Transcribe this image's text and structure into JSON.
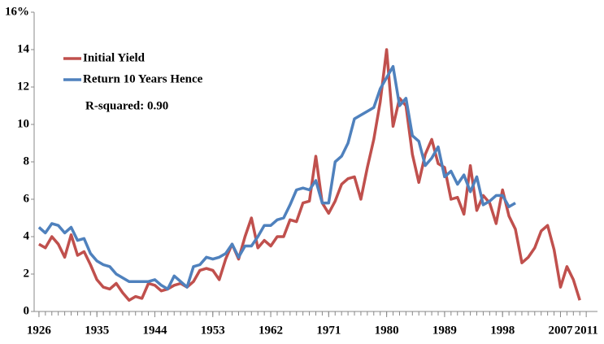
{
  "chart_data": {
    "type": "line",
    "x": [
      1926,
      1927,
      1928,
      1929,
      1930,
      1931,
      1932,
      1933,
      1934,
      1935,
      1936,
      1937,
      1938,
      1939,
      1940,
      1941,
      1942,
      1943,
      1944,
      1945,
      1946,
      1947,
      1948,
      1949,
      1950,
      1951,
      1952,
      1953,
      1954,
      1955,
      1956,
      1957,
      1958,
      1959,
      1960,
      1961,
      1962,
      1963,
      1964,
      1965,
      1966,
      1967,
      1968,
      1969,
      1970,
      1971,
      1972,
      1973,
      1974,
      1975,
      1976,
      1977,
      1978,
      1979,
      1980,
      1981,
      1982,
      1983,
      1984,
      1985,
      1986,
      1987,
      1988,
      1989,
      1990,
      1991,
      1992,
      1993,
      1994,
      1995,
      1996,
      1997,
      1998,
      1999,
      2000,
      2001,
      2002,
      2003,
      2004,
      2005,
      2006,
      2007,
      2008,
      2009,
      2010
    ],
    "series": [
      {
        "name": "Initial Yield",
        "color": "#c0504d",
        "values": [
          3.6,
          3.4,
          4.0,
          3.6,
          2.9,
          4.1,
          3.0,
          3.2,
          2.5,
          1.7,
          1.3,
          1.2,
          1.5,
          1.0,
          0.6,
          0.8,
          0.7,
          1.5,
          1.4,
          1.1,
          1.2,
          1.4,
          1.5,
          1.3,
          1.6,
          2.2,
          2.3,
          2.2,
          1.7,
          2.8,
          3.6,
          2.8,
          4.0,
          5.0,
          3.4,
          3.8,
          3.5,
          4.0,
          4.0,
          4.9,
          4.8,
          5.8,
          5.9,
          8.3,
          5.8,
          5.25,
          5.9,
          6.8,
          7.1,
          7.2,
          6.0,
          7.7,
          9.2,
          11.2,
          14.0,
          9.9,
          11.4,
          11.0,
          8.4,
          6.9,
          8.4,
          9.2,
          7.9,
          7.7,
          6.0,
          6.1,
          5.2,
          7.8,
          5.4,
          6.2,
          5.8,
          4.7,
          6.5,
          5.1,
          4.4,
          2.6,
          2.9,
          3.4,
          4.3,
          4.6,
          3.3,
          1.3,
          2.4,
          1.7,
          0.6
        ]
      },
      {
        "name": "Return 10 Years Hence",
        "color": "#4f81bd",
        "values": [
          4.5,
          4.2,
          4.7,
          4.6,
          4.2,
          4.5,
          3.8,
          3.9,
          3.1,
          2.7,
          2.5,
          2.4,
          2.0,
          1.8,
          1.6,
          1.6,
          1.6,
          1.6,
          1.7,
          1.4,
          1.2,
          1.9,
          1.6,
          1.3,
          2.4,
          2.5,
          2.9,
          2.8,
          2.9,
          3.1,
          3.6,
          2.9,
          3.5,
          3.5,
          4.0,
          4.6,
          4.6,
          4.9,
          5.0,
          5.7,
          6.5,
          6.6,
          6.5,
          7.0,
          5.8,
          5.8,
          8.0,
          8.3,
          9.0,
          10.3,
          10.5,
          10.7,
          10.9,
          11.9,
          12.5,
          13.1,
          11.0,
          11.4,
          9.4,
          9.1,
          7.8,
          8.2,
          8.8,
          7.2,
          7.5,
          6.8,
          7.3,
          6.4,
          7.2,
          5.7,
          5.9,
          6.2,
          6.2,
          5.6,
          5.8,
          null,
          null,
          null,
          null,
          null,
          null,
          null,
          null,
          null,
          null
        ]
      }
    ],
    "annotation": "R-squared: 0.90",
    "xlim": [
      1925,
      2013
    ],
    "xticks": [
      1926,
      1935,
      1944,
      1953,
      1962,
      1971,
      1980,
      1989,
      1998,
      2007,
      2011
    ],
    "ylim": [
      0,
      16
    ],
    "yticks": [
      0,
      2,
      4,
      6,
      8,
      10,
      12,
      14,
      {
        "value": 16,
        "label": "16%"
      }
    ],
    "grid": false,
    "legend": "upper-left"
  }
}
